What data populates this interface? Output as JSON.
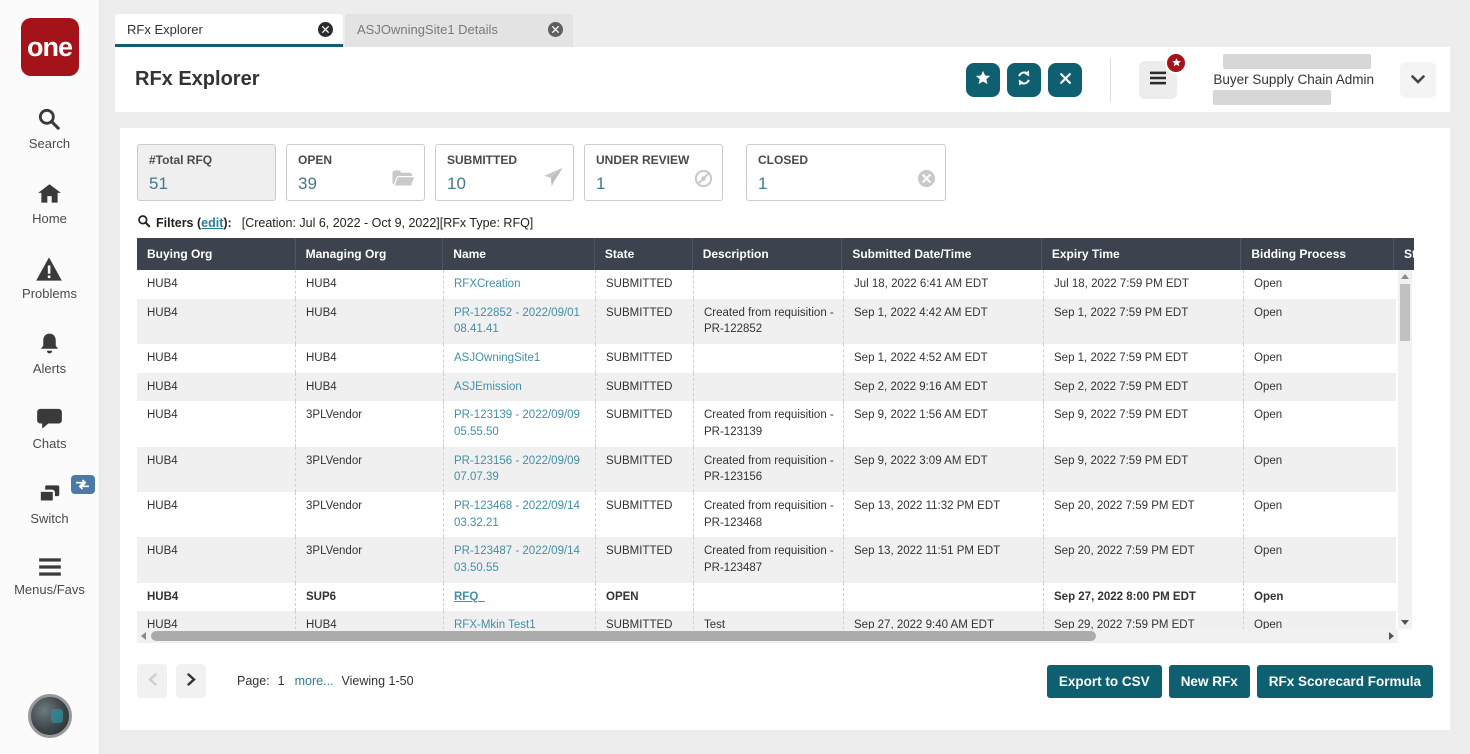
{
  "colors": {
    "accent_teal": "#0e5f6f",
    "brand_red": "#a31319",
    "table_header_bg": "#3c434e",
    "link_teal": "#4190a8",
    "badge_red": "#a31319",
    "switch_badge_blue": "#4b79a8"
  },
  "sidebar": {
    "logo_text": "one",
    "items": [
      {
        "label": "Search",
        "icon": "search-icon"
      },
      {
        "label": "Home",
        "icon": "home-icon"
      },
      {
        "label": "Problems",
        "icon": "warning-icon"
      },
      {
        "label": "Alerts",
        "icon": "bell-icon"
      },
      {
        "label": "Chats",
        "icon": "chat-icon"
      },
      {
        "label": "Switch",
        "icon": "switch-windows-icon"
      },
      {
        "label": "Menus/Favs",
        "icon": "hamburger-icon"
      }
    ]
  },
  "tabs": [
    {
      "label": "RFx Explorer",
      "active": true
    },
    {
      "label": "ASJOwningSite1 Details",
      "active": false
    }
  ],
  "header": {
    "title": "RFx Explorer",
    "action_icons": [
      "favorite-star-icon",
      "refresh-icon",
      "close-icon"
    ],
    "menu_icon": "hamburger-icon",
    "menu_badge_icon": "star-icon",
    "user_role": "Buyer Supply Chain Admin"
  },
  "summary_cards": [
    {
      "label": "#Total RFQ",
      "value": "51",
      "icon": "",
      "selected": true
    },
    {
      "label": "OPEN",
      "value": "39",
      "icon": "folder-open-icon",
      "selected": false
    },
    {
      "label": "SUBMITTED",
      "value": "10",
      "icon": "paper-plane-icon",
      "selected": false
    },
    {
      "label": "UNDER REVIEW",
      "value": "1",
      "icon": "review-eye-icon",
      "selected": false
    },
    {
      "label": "CLOSED",
      "value": "1",
      "icon": "x-circle-icon",
      "selected": false
    }
  ],
  "filters": {
    "prefix": "Filters (",
    "edit": "edit",
    "suffix": "):",
    "criteria": "[Creation: Jul 6, 2022 - Oct 9, 2022][RFx Type: RFQ]"
  },
  "table": {
    "columns": [
      "Buying Org",
      "Managing Org",
      "Name",
      "State",
      "Description",
      "Submitted Date/Time",
      "Expiry Time",
      "Bidding Process",
      "Sta"
    ],
    "rows": [
      {
        "buying_org": "HUB4",
        "managing_org": "HUB4",
        "name": "RFXCreation",
        "state": "SUBMITTED",
        "description": "",
        "submitted": "Jul 18, 2022 6:41 AM EDT",
        "expiry": "Jul 18, 2022 7:59 PM EDT",
        "bidding": "Open",
        "bold": false
      },
      {
        "buying_org": "HUB4",
        "managing_org": "HUB4",
        "name": "PR-122852 - 2022/09/01 08.41.41",
        "state": "SUBMITTED",
        "description": "Created from requisition - PR-122852",
        "submitted": "Sep 1, 2022 4:42 AM EDT",
        "expiry": "Sep 1, 2022 7:59 PM EDT",
        "bidding": "Open",
        "bold": false
      },
      {
        "buying_org": "HUB4",
        "managing_org": "HUB4",
        "name": "ASJOwningSite1",
        "state": "SUBMITTED",
        "description": "",
        "submitted": "Sep 1, 2022 4:52 AM EDT",
        "expiry": "Sep 1, 2022 7:59 PM EDT",
        "bidding": "Open",
        "bold": false
      },
      {
        "buying_org": "HUB4",
        "managing_org": "HUB4",
        "name": "ASJEmission",
        "state": "SUBMITTED",
        "description": "",
        "submitted": "Sep 2, 2022 9:16 AM EDT",
        "expiry": "Sep 2, 2022 7:59 PM EDT",
        "bidding": "Open",
        "bold": false
      },
      {
        "buying_org": "HUB4",
        "managing_org": "3PLVendor",
        "name": "PR-123139 - 2022/09/09 05.55.50",
        "state": "SUBMITTED",
        "description": "Created from requisition - PR-123139",
        "submitted": "Sep 9, 2022 1:56 AM EDT",
        "expiry": "Sep 9, 2022 7:59 PM EDT",
        "bidding": "Open",
        "bold": false
      },
      {
        "buying_org": "HUB4",
        "managing_org": "3PLVendor",
        "name": "PR-123156 - 2022/09/09 07.07.39",
        "state": "SUBMITTED",
        "description": "Created from requisition - PR-123156",
        "submitted": "Sep 9, 2022 3:09 AM EDT",
        "expiry": "Sep 9, 2022 7:59 PM EDT",
        "bidding": "Open",
        "bold": false
      },
      {
        "buying_org": "HUB4",
        "managing_org": "3PLVendor",
        "name": "PR-123468 - 2022/09/14 03.32.21",
        "state": "SUBMITTED",
        "description": "Created from requisition - PR-123468",
        "submitted": "Sep 13, 2022 11:32 PM EDT",
        "expiry": "Sep 20, 2022 7:59 PM EDT",
        "bidding": "Open",
        "bold": false
      },
      {
        "buying_org": "HUB4",
        "managing_org": "3PLVendor",
        "name": "PR-123487 - 2022/09/14 03.50.55",
        "state": "SUBMITTED",
        "description": "Created from requisition - PR-123487",
        "submitted": "Sep 13, 2022 11:51 PM EDT",
        "expiry": "Sep 20, 2022 7:59 PM EDT",
        "bidding": "Open",
        "bold": false
      },
      {
        "buying_org": "HUB4",
        "managing_org": "SUP6",
        "name": "RFQ_",
        "state": "OPEN",
        "description": "",
        "submitted": "",
        "expiry": "Sep 27, 2022 8:00 PM EDT",
        "bidding": "Open",
        "bold": true
      },
      {
        "buying_org": "HUB4",
        "managing_org": "HUB4",
        "name": "RFX-Mkin Test1",
        "state": "SUBMITTED",
        "description": "Test",
        "submitted": "Sep 27, 2022 9:40 AM EDT",
        "expiry": "Sep 29, 2022 7:59 PM EDT",
        "bidding": "Open",
        "bold": false
      }
    ]
  },
  "pagination": {
    "page_label": "Page:",
    "page_number": "1",
    "more_link": "more...",
    "viewing": "Viewing 1-50"
  },
  "footer_buttons": [
    "Export to CSV",
    "New RFx",
    "RFx Scorecard Formula"
  ]
}
